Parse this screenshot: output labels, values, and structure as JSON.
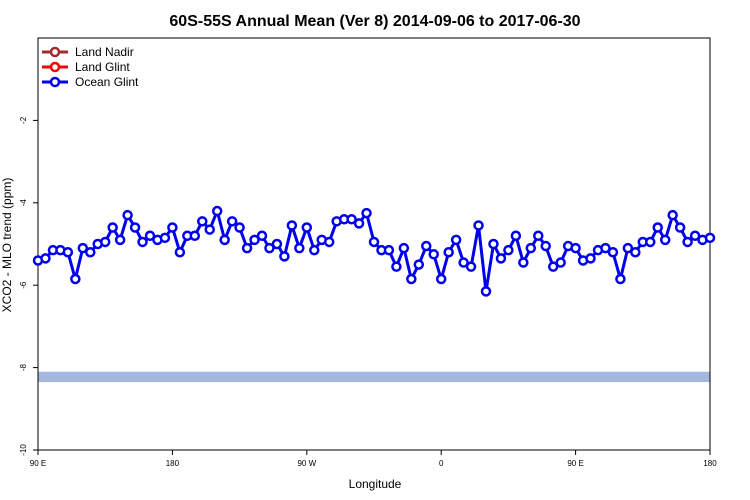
{
  "chart_data": {
    "type": "line",
    "title": "60S-55S Annual Mean (Ver 8)   2014-09-06 to 2017-06-30",
    "xlabel": "Longitude",
    "ylabel": "XCO2 - MLO trend (ppm)",
    "ylim": [
      -10,
      0
    ],
    "y_ticks": [
      -10,
      -8,
      -6,
      -4,
      -2
    ],
    "y_tick_labels": [
      "-10",
      "-8",
      "-6",
      "-4",
      "-2"
    ],
    "xlim": [
      90,
      540
    ],
    "x_ticks": [
      90,
      180,
      270,
      360,
      450,
      540
    ],
    "x_tick_labels": [
      "90 E",
      "180",
      "90 W",
      "0",
      "90 E",
      "180"
    ],
    "legend": {
      "position": "top-left",
      "entries": [
        {
          "name": "Land Nadir",
          "color": "#a52a2a"
        },
        {
          "name": "Land Glint",
          "color": "#ff0000"
        },
        {
          "name": "Ocean Glint",
          "color": "#0000ee"
        }
      ]
    },
    "band": {
      "y_min": -8.35,
      "y_max": -8.1,
      "color": "#a2b8dd"
    },
    "series": [
      {
        "name": "Ocean Glint",
        "color": "#0000ee",
        "x": [
          90,
          95,
          100,
          105,
          110,
          115,
          120,
          125,
          130,
          135,
          140,
          145,
          150,
          155,
          160,
          165,
          170,
          175,
          180,
          185,
          190,
          195,
          200,
          205,
          210,
          215,
          220,
          225,
          230,
          235,
          240,
          245,
          250,
          255,
          260,
          265,
          270,
          275,
          280,
          285,
          290,
          295,
          300,
          305,
          310,
          315,
          320,
          325,
          330,
          335,
          340,
          345,
          350,
          355,
          360,
          365,
          370,
          375,
          380,
          385,
          390,
          395,
          400,
          405,
          410,
          415,
          420,
          425,
          430,
          435,
          440,
          445,
          450,
          455,
          460,
          465,
          470,
          475,
          480,
          485,
          490,
          495,
          500,
          505,
          510,
          515,
          520,
          525,
          530,
          535,
          540
        ],
        "y": [
          -5.4,
          -5.35,
          -5.15,
          -5.15,
          -5.2,
          -5.85,
          -5.1,
          -5.2,
          -5.0,
          -4.95,
          -4.6,
          -4.9,
          -4.3,
          -4.6,
          -4.95,
          -4.8,
          -4.9,
          -4.85,
          -4.6,
          -5.2,
          -4.8,
          -4.8,
          -4.45,
          -4.65,
          -4.2,
          -4.9,
          -4.45,
          -4.6,
          -5.1,
          -4.9,
          -4.8,
          -5.1,
          -5.0,
          -5.3,
          -4.55,
          -5.1,
          -4.6,
          -5.15,
          -4.9,
          -4.95,
          -4.45,
          -4.4,
          -4.4,
          -4.5,
          -4.25,
          -4.95,
          -5.15,
          -5.15,
          -5.55,
          -5.1,
          -5.85,
          -5.5,
          -5.05,
          -5.25,
          -5.85,
          -5.2,
          -4.9,
          -5.45,
          -5.55,
          -4.55,
          -6.15,
          -5.0,
          -5.35,
          -5.15,
          -4.8,
          -5.45,
          -5.1,
          -4.8,
          -5.05,
          -5.55,
          -5.45,
          -5.05,
          -5.1,
          -5.4,
          -5.35,
          -5.15,
          -5.1,
          -5.2,
          -5.85,
          -5.1,
          -5.2,
          -4.95,
          -4.95,
          -4.6,
          -4.9,
          -4.3,
          -4.6,
          -4.95,
          -4.8,
          -4.9,
          -4.85
        ]
      }
    ]
  }
}
